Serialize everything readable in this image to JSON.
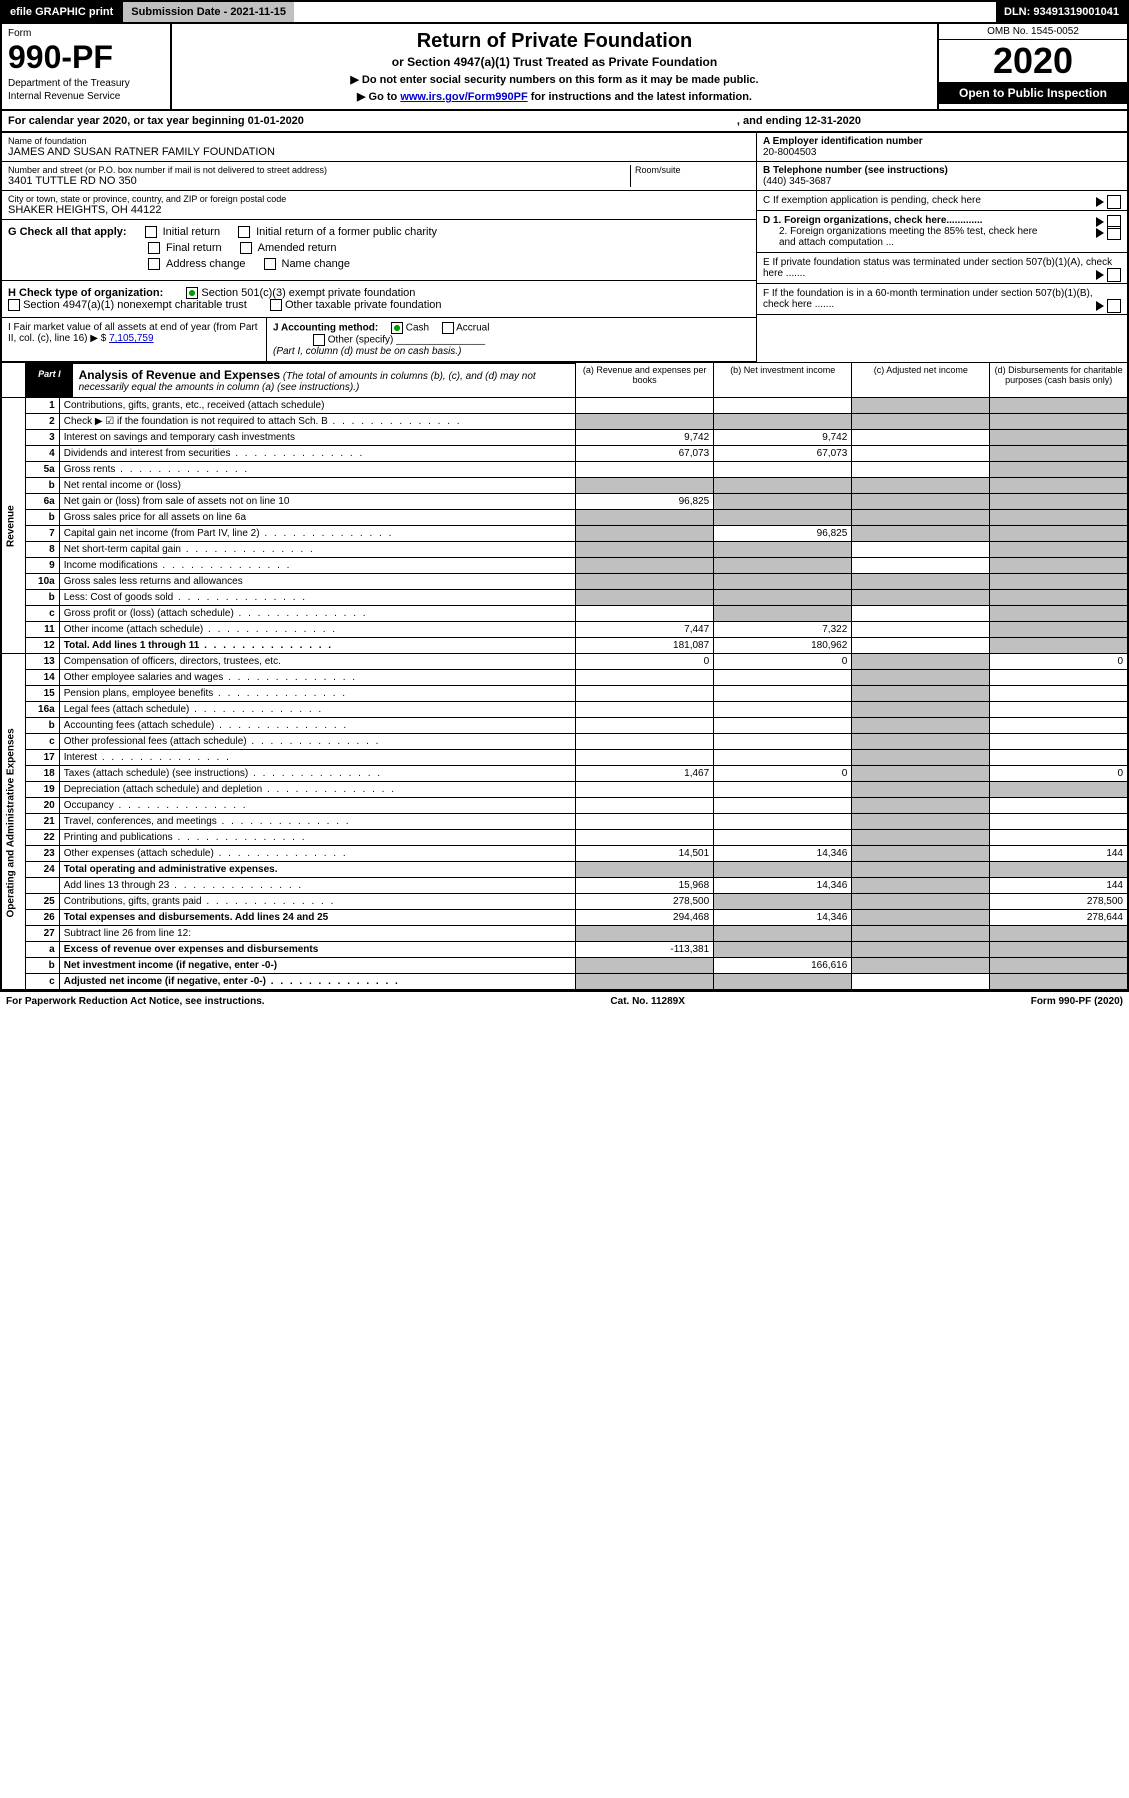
{
  "topbar": {
    "efile": "efile GRAPHIC print",
    "subdate": "Submission Date - 2021-11-15",
    "dln": "DLN: 93491319001041"
  },
  "header": {
    "formword": "Form",
    "formno": "990-PF",
    "dept": "Department of the Treasury",
    "irs": "Internal Revenue Service",
    "title": "Return of Private Foundation",
    "sub": "or Section 4947(a)(1) Trust Treated as Private Foundation",
    "instr1": "▶ Do not enter social security numbers on this form as it may be made public.",
    "instr2_a": "▶ Go to ",
    "instr2_link": "www.irs.gov/Form990PF",
    "instr2_b": " for instructions and the latest information.",
    "omb": "OMB No. 1545-0052",
    "year": "2020",
    "open": "Open to Public Inspection"
  },
  "calyear": {
    "a": "For calendar year 2020, or tax year beginning 01-01-2020",
    "b": ", and ending 12-31-2020"
  },
  "left": {
    "name_label": "Name of foundation",
    "name": "JAMES AND SUSAN RATNER FAMILY FOUNDATION",
    "addr_label": "Number and street (or P.O. box number if mail is not delivered to street address)",
    "addr": "3401 TUTTLE RD NO 350",
    "room_label": "Room/suite",
    "city_label": "City or town, state or province, country, and ZIP or foreign postal code",
    "city": "SHAKER HEIGHTS, OH  44122"
  },
  "right": {
    "A_label": "A Employer identification number",
    "A_val": "20-8004503",
    "B_label": "B Telephone number (see instructions)",
    "B_val": "(440) 345-3687",
    "C": "C If exemption application is pending, check here",
    "D1": "D 1. Foreign organizations, check here.............",
    "D2": "2. Foreign organizations meeting the 85% test, check here and attach computation ...",
    "E": "E  If private foundation status was terminated under section 507(b)(1)(A), check here .......",
    "F": "F  If the foundation is in a 60-month termination under section 507(b)(1)(B), check here ......."
  },
  "G": {
    "label": "G Check all that apply:",
    "o1": "Initial return",
    "o2": "Initial return of a former public charity",
    "o3": "Final return",
    "o4": "Amended return",
    "o5": "Address change",
    "o6": "Name change"
  },
  "H": {
    "label": "H Check type of organization:",
    "o1": "Section 501(c)(3) exempt private foundation",
    "o2": "Section 4947(a)(1) nonexempt charitable trust",
    "o3": "Other taxable private foundation"
  },
  "I": {
    "left1": "I Fair market value of all assets at end of year (from Part II, col. (c), line 16) ▶ $",
    "left_val": "7,105,759",
    "j": "J Accounting method:",
    "cash": "Cash",
    "accrual": "Accrual",
    "other": "Other (specify)",
    "note": "(Part I, column (d) must be on cash basis.)"
  },
  "part1": {
    "tag": "Part I",
    "title": "Analysis of Revenue and Expenses",
    "sub": " (The total of amounts in columns (b), (c), and (d) may not necessarily equal the amounts in column (a) (see instructions).)",
    "col_a": "(a)   Revenue and expenses per books",
    "col_b": "(b)   Net investment income",
    "col_c": "(c)   Adjusted net income",
    "col_d": "(d)   Disbursements for charitable purposes (cash basis only)"
  },
  "sections": {
    "rev": "Revenue",
    "oae": "Operating and Administrative Expenses"
  },
  "lines": [
    {
      "no": "1",
      "lbl": "Contributions, gifts, grants, etc., received (attach schedule)",
      "sh": [
        "",
        "",
        "c",
        "d"
      ]
    },
    {
      "no": "2",
      "lbl": "Check ▶ ☑ if the foundation is not required to attach Sch. B",
      "dots": true,
      "sh": [
        "a",
        "b",
        "c",
        "d"
      ]
    },
    {
      "no": "3",
      "lbl": "Interest on savings and temporary cash investments",
      "a": "9,742",
      "b": "9,742",
      "sh": [
        "",
        "",
        "",
        "d"
      ]
    },
    {
      "no": "4",
      "lbl": "Dividends and interest from securities",
      "dots": true,
      "a": "67,073",
      "b": "67,073",
      "sh": [
        "",
        "",
        "",
        "d"
      ]
    },
    {
      "no": "5a",
      "lbl": "Gross rents",
      "dots": true,
      "sh": [
        "",
        "",
        "",
        "d"
      ]
    },
    {
      "no": "b",
      "lbl": "Net rental income or (loss)",
      "sh": [
        "a",
        "b",
        "c",
        "d"
      ]
    },
    {
      "no": "6a",
      "lbl": "Net gain or (loss) from sale of assets not on line 10",
      "a": "96,825",
      "sh": [
        "",
        "b",
        "c",
        "d"
      ]
    },
    {
      "no": "b",
      "lbl": "Gross sales price for all assets on line 6a",
      "sh": [
        "a",
        "b",
        "c",
        "d"
      ]
    },
    {
      "no": "7",
      "lbl": "Capital gain net income (from Part IV, line 2)",
      "dots": true,
      "b": "96,825",
      "sh": [
        "a",
        "",
        "c",
        "d"
      ]
    },
    {
      "no": "8",
      "lbl": "Net short-term capital gain",
      "dots": true,
      "sh": [
        "a",
        "b",
        "",
        "d"
      ]
    },
    {
      "no": "9",
      "lbl": "Income modifications",
      "dots": true,
      "sh": [
        "a",
        "b",
        "",
        "d"
      ]
    },
    {
      "no": "10a",
      "lbl": "Gross sales less returns and allowances",
      "sh": [
        "a",
        "b",
        "c",
        "d"
      ]
    },
    {
      "no": "b",
      "lbl": "Less: Cost of goods sold",
      "dots": true,
      "sh": [
        "a",
        "b",
        "c",
        "d"
      ]
    },
    {
      "no": "c",
      "lbl": "Gross profit or (loss) (attach schedule)",
      "dots": true,
      "sh": [
        "",
        "b",
        "",
        "d"
      ]
    },
    {
      "no": "11",
      "lbl": "Other income (attach schedule)",
      "dots": true,
      "a": "7,447",
      "b": "7,322",
      "sh": [
        "",
        "",
        "",
        "d"
      ]
    },
    {
      "no": "12",
      "lbl": "Total. Add lines 1 through 11",
      "bold": true,
      "dots": true,
      "a": "181,087",
      "b": "180,962",
      "sh": [
        "",
        "",
        "",
        "d"
      ]
    },
    {
      "no": "13",
      "lbl": "Compensation of officers, directors, trustees, etc.",
      "a": "0",
      "b": "0",
      "d": "0",
      "sh": [
        "",
        "",
        "c",
        ""
      ]
    },
    {
      "no": "14",
      "lbl": "Other employee salaries and wages",
      "dots": true,
      "sh": [
        "",
        "",
        "c",
        ""
      ]
    },
    {
      "no": "15",
      "lbl": "Pension plans, employee benefits",
      "dots": true,
      "sh": [
        "",
        "",
        "c",
        ""
      ]
    },
    {
      "no": "16a",
      "lbl": "Legal fees (attach schedule)",
      "dots": true,
      "sh": [
        "",
        "",
        "c",
        ""
      ]
    },
    {
      "no": "b",
      "lbl": "Accounting fees (attach schedule)",
      "dots": true,
      "sh": [
        "",
        "",
        "c",
        ""
      ]
    },
    {
      "no": "c",
      "lbl": "Other professional fees (attach schedule)",
      "dots": true,
      "sh": [
        "",
        "",
        "c",
        ""
      ]
    },
    {
      "no": "17",
      "lbl": "Interest",
      "dots": true,
      "sh": [
        "",
        "",
        "c",
        ""
      ]
    },
    {
      "no": "18",
      "lbl": "Taxes (attach schedule) (see instructions)",
      "dots": true,
      "a": "1,467",
      "b": "0",
      "d": "0",
      "sh": [
        "",
        "",
        "c",
        ""
      ]
    },
    {
      "no": "19",
      "lbl": "Depreciation (attach schedule) and depletion",
      "dots": true,
      "sh": [
        "",
        "",
        "c",
        "d"
      ]
    },
    {
      "no": "20",
      "lbl": "Occupancy",
      "dots": true,
      "sh": [
        "",
        "",
        "c",
        ""
      ]
    },
    {
      "no": "21",
      "lbl": "Travel, conferences, and meetings",
      "dots": true,
      "sh": [
        "",
        "",
        "c",
        ""
      ]
    },
    {
      "no": "22",
      "lbl": "Printing and publications",
      "dots": true,
      "sh": [
        "",
        "",
        "c",
        ""
      ]
    },
    {
      "no": "23",
      "lbl": "Other expenses (attach schedule)",
      "dots": true,
      "a": "14,501",
      "b": "14,346",
      "d": "144",
      "sh": [
        "",
        "",
        "c",
        ""
      ]
    },
    {
      "no": "24",
      "lbl": "Total operating and administrative expenses.",
      "bold": true,
      "sh": [
        "a",
        "b",
        "c",
        "d"
      ]
    },
    {
      "no": "",
      "lbl": "Add lines 13 through 23",
      "dots": true,
      "a": "15,968",
      "b": "14,346",
      "d": "144",
      "sh": [
        "",
        "",
        "c",
        ""
      ]
    },
    {
      "no": "25",
      "lbl": "Contributions, gifts, grants paid",
      "dots": true,
      "a": "278,500",
      "d": "278,500",
      "sh": [
        "",
        "b",
        "c",
        ""
      ]
    },
    {
      "no": "26",
      "lbl": "Total expenses and disbursements. Add lines 24 and 25",
      "bold": true,
      "a": "294,468",
      "b": "14,346",
      "d": "278,644",
      "sh": [
        "",
        "",
        "c",
        ""
      ]
    },
    {
      "no": "27",
      "lbl": "Subtract line 26 from line 12:",
      "sh": [
        "a",
        "b",
        "c",
        "d"
      ]
    },
    {
      "no": "a",
      "lbl": "Excess of revenue over expenses and disbursements",
      "bold": true,
      "a": "-113,381",
      "sh": [
        "",
        "b",
        "c",
        "d"
      ]
    },
    {
      "no": "b",
      "lbl": "Net investment income (if negative, enter -0-)",
      "bold": true,
      "b": "166,616",
      "sh": [
        "a",
        "",
        "c",
        "d"
      ]
    },
    {
      "no": "c",
      "lbl": "Adjusted net income (if negative, enter -0-)",
      "bold": true,
      "dots": true,
      "sh": [
        "a",
        "b",
        "",
        "d"
      ]
    }
  ],
  "footer": {
    "a": "For Paperwork Reduction Act Notice, see instructions.",
    "b": "Cat. No. 11289X",
    "c": "Form 990-PF (2020)"
  },
  "style": {
    "shaded": "#c0c0c0",
    "link": "#0000cc",
    "check": "#00a000"
  }
}
